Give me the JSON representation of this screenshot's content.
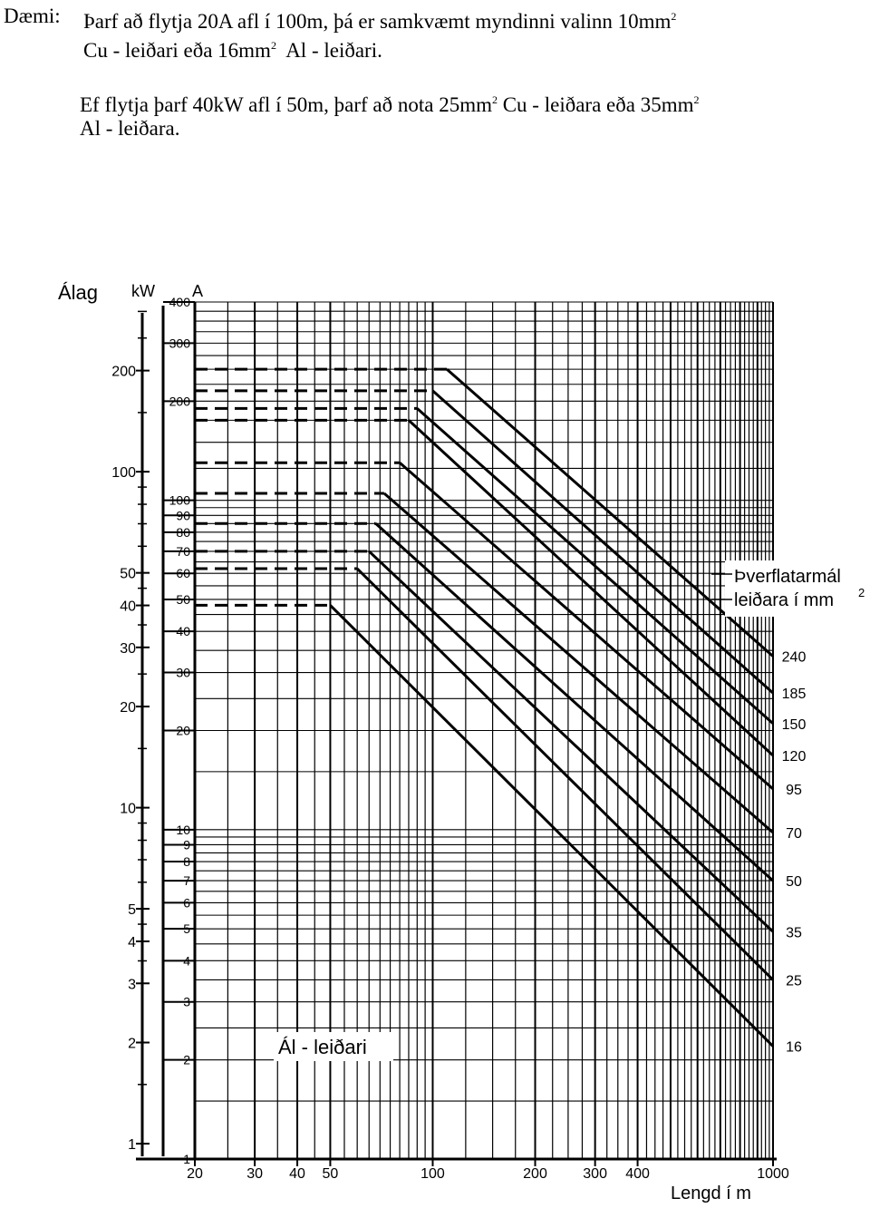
{
  "example": {
    "label": "Dæmi:",
    "line1_a": "Þarf að flytja 20A afl í 100m, þá er samkvæmt myndinni valinn 10mm",
    "line1_b": "2",
    "line2_a": "Cu - leiðari eða 16mm",
    "line2_b": "2",
    "line2_c": "Al - leiðari.",
    "line3_a": "Ef flytja þarf 40kW afl í 50m, þarf að nota 25mm",
    "line3_b": "2",
    "line3_c": "Cu - leiðara eða 35mm",
    "line3_d": "2",
    "line4": "Al - leiðara."
  },
  "chart_data": {
    "type": "line",
    "title": "",
    "material_label": "Ál - leiðari",
    "xlabel": "Lengd í m",
    "x_scale": "log",
    "x_range": [
      20,
      1000
    ],
    "x_ticks": [
      "20",
      "30",
      "40",
      "50",
      "100",
      "200",
      "300",
      "400",
      "1000"
    ],
    "left_axis": {
      "label": "Álag",
      "unit": "kW",
      "scale": "log",
      "range": [
        0.9,
        320
      ],
      "ticks": [
        "200",
        "100",
        "50",
        "40",
        "30",
        "20",
        "10",
        "5",
        "4",
        "3",
        "2",
        "1"
      ]
    },
    "current_axis": {
      "unit": "A",
      "scale": "log",
      "range": [
        1,
        400
      ],
      "ticks": [
        "400",
        "300",
        "200",
        "100",
        "90",
        "80",
        "70",
        "60",
        "50",
        "40",
        "30",
        "20",
        "10",
        "9",
        "8",
        "7",
        "6",
        "5",
        "4",
        "3",
        "2",
        "1"
      ]
    },
    "legend_title_1": "Þverflatarmál",
    "legend_title_2": "leiðara í mm",
    "legend_title_sup": "2",
    "series": [
      {
        "name": "240",
        "current_max": 250,
        "start_length": 110,
        "end_length": 1000,
        "end_current": 33.6
      },
      {
        "name": "185",
        "current_max": 215,
        "start_length": 100,
        "end_length": 1000,
        "end_current": 26
      },
      {
        "name": "150",
        "current_max": 190,
        "start_length": 90,
        "end_length": 1000,
        "end_current": 21
      },
      {
        "name": "120",
        "current_max": 175,
        "start_length": 85,
        "end_length": 1000,
        "end_current": 16.8
      },
      {
        "name": "95",
        "current_max": 130,
        "start_length": 80,
        "end_length": 1000,
        "end_current": 13.3
      },
      {
        "name": "70",
        "current_max": 105,
        "start_length": 72,
        "end_length": 1000,
        "end_current": 9.8
      },
      {
        "name": "50",
        "current_max": 85,
        "start_length": 68,
        "end_length": 1000,
        "end_current": 7
      },
      {
        "name": "35",
        "current_max": 70,
        "start_length": 65,
        "end_length": 1000,
        "end_current": 4.9
      },
      {
        "name": "25",
        "current_max": 62,
        "start_length": 60,
        "end_length": 1000,
        "end_current": 3.5
      },
      {
        "name": "16",
        "current_max": 48,
        "start_length": 50,
        "end_length": 1000,
        "end_current": 2.2
      }
    ],
    "grid": true
  }
}
